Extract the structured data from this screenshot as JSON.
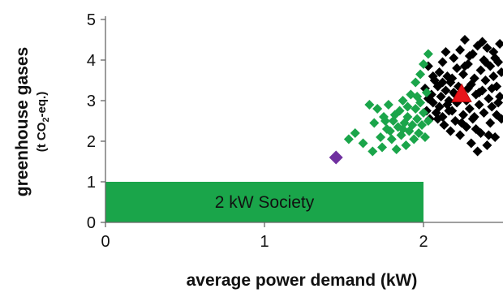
{
  "chart_data": {
    "type": "scatter",
    "xlabel": "average power demand (kW)",
    "ylabel": "greenhouse gases",
    "ylabel_unit": {
      "prefix": "(t CO",
      "subscript": "2",
      "suffix": "-eq.)"
    },
    "xlim": [
      0,
      2.5
    ],
    "ylim": [
      0,
      5
    ],
    "x_ticks": [
      0,
      1,
      2
    ],
    "y_ticks": [
      0,
      1,
      2,
      3,
      4,
      5
    ],
    "grid": false,
    "legend": "none",
    "annotations": [
      {
        "text": "2 kW Society",
        "x_range": [
          0,
          2
        ],
        "y_range": [
          0,
          1
        ],
        "color": "#1aa54a"
      }
    ],
    "series": [
      {
        "marker": "diamond",
        "color": "#000000",
        "points": [
          [
            2.01,
            3.3
          ],
          [
            2.02,
            2.75
          ],
          [
            2.03,
            3.05
          ],
          [
            2.03,
            3.85
          ],
          [
            2.04,
            2.55
          ],
          [
            2.05,
            3.15
          ],
          [
            2.06,
            2.95
          ],
          [
            2.07,
            3.5
          ],
          [
            2.08,
            2.7
          ],
          [
            2.09,
            3.35
          ],
          [
            2.1,
            2.85
          ],
          [
            2.1,
            3.7
          ],
          [
            2.11,
            3.1
          ],
          [
            2.12,
            2.6
          ],
          [
            2.12,
            3.95
          ],
          [
            2.13,
            2.4
          ],
          [
            2.14,
            3.25
          ],
          [
            2.15,
            2.9
          ],
          [
            2.15,
            3.6
          ],
          [
            2.16,
            3.0
          ],
          [
            2.17,
            2.25
          ],
          [
            2.17,
            3.45
          ],
          [
            2.18,
            2.75
          ],
          [
            2.19,
            4.05
          ],
          [
            2.19,
            3.2
          ],
          [
            2.2,
            2.5
          ],
          [
            2.21,
            3.8
          ],
          [
            2.21,
            2.95
          ],
          [
            2.22,
            3.35
          ],
          [
            2.23,
            4.25
          ],
          [
            2.23,
            2.15
          ],
          [
            2.24,
            3.1
          ],
          [
            2.25,
            3.65
          ],
          [
            2.25,
            2.65
          ],
          [
            2.26,
            4.5
          ],
          [
            2.27,
            3.0
          ],
          [
            2.27,
            2.35
          ],
          [
            2.28,
            3.9
          ],
          [
            2.29,
            2.8
          ],
          [
            2.3,
            3.4
          ],
          [
            2.3,
            1.95
          ],
          [
            2.31,
            4.15
          ],
          [
            2.32,
            2.6
          ],
          [
            2.32,
            3.55
          ],
          [
            2.33,
            3.15
          ],
          [
            2.34,
            1.75
          ],
          [
            2.34,
            4.35
          ],
          [
            2.35,
            2.9
          ],
          [
            2.36,
            3.75
          ],
          [
            2.36,
            2.2
          ],
          [
            2.37,
            3.25
          ],
          [
            2.38,
            4.0
          ],
          [
            2.38,
            2.7
          ],
          [
            2.39,
            3.5
          ],
          [
            2.4,
            1.9
          ],
          [
            2.4,
            4.3
          ],
          [
            2.41,
            3.05
          ],
          [
            2.42,
            2.45
          ],
          [
            2.42,
            3.85
          ],
          [
            2.43,
            2.85
          ],
          [
            2.44,
            3.6
          ],
          [
            2.44,
            4.2
          ],
          [
            2.45,
            2.1
          ],
          [
            2.46,
            3.35
          ],
          [
            2.46,
            2.65
          ],
          [
            2.47,
            3.95
          ],
          [
            2.48,
            3.1
          ],
          [
            2.48,
            4.4
          ],
          [
            2.49,
            2.55
          ],
          [
            2.49,
            3.7
          ],
          [
            2.06,
            3.6
          ],
          [
            2.09,
            2.55
          ],
          [
            2.14,
            4.2
          ],
          [
            2.18,
            3.55
          ],
          [
            2.24,
            2.45
          ],
          [
            2.28,
            3.3
          ],
          [
            2.33,
            2.3
          ],
          [
            2.37,
            4.45
          ],
          [
            2.41,
            2.15
          ],
          [
            2.45,
            4.05
          ],
          [
            2.47,
            2.95
          ],
          [
            2.26,
            3.85
          ],
          [
            2.2,
            3.15
          ],
          [
            2.31,
            2.55
          ],
          [
            2.39,
            3.95
          ],
          [
            2.43,
            3.3
          ],
          [
            2.12,
            3.45
          ],
          [
            2.35,
            3.2
          ],
          [
            2.29,
            4.1
          ],
          [
            2.16,
            2.75
          ]
        ]
      },
      {
        "marker": "diamond",
        "color": "#1aa54a",
        "points": [
          [
            1.53,
            2.05
          ],
          [
            1.57,
            2.2
          ],
          [
            1.62,
            1.95
          ],
          [
            1.66,
            2.9
          ],
          [
            1.68,
            1.75
          ],
          [
            1.69,
            2.45
          ],
          [
            1.71,
            2.8
          ],
          [
            1.73,
            2.1
          ],
          [
            1.74,
            1.85
          ],
          [
            1.75,
            2.6
          ],
          [
            1.77,
            2.3
          ],
          [
            1.78,
            2.9
          ],
          [
            1.8,
            2.05
          ],
          [
            1.81,
            2.5
          ],
          [
            1.83,
            1.8
          ],
          [
            1.84,
            2.35
          ],
          [
            1.85,
            2.75
          ],
          [
            1.86,
            2.15
          ],
          [
            1.87,
            3.0
          ],
          [
            1.88,
            2.45
          ],
          [
            1.89,
            1.9
          ],
          [
            1.9,
            2.6
          ],
          [
            1.91,
            2.25
          ],
          [
            1.92,
            3.15
          ],
          [
            1.93,
            2.4
          ],
          [
            1.94,
            2.05
          ],
          [
            1.95,
            2.8
          ],
          [
            1.95,
            3.45
          ],
          [
            1.96,
            2.55
          ],
          [
            1.97,
            2.2
          ],
          [
            1.98,
            3.65
          ],
          [
            1.98,
            2.95
          ],
          [
            1.99,
            2.4
          ],
          [
            2.0,
            3.9
          ],
          [
            2.0,
            2.7
          ],
          [
            2.01,
            2.1
          ],
          [
            2.02,
            3.2
          ],
          [
            2.03,
            4.15
          ],
          [
            2.03,
            2.5
          ],
          [
            1.96,
            3.1
          ],
          [
            1.9,
            2.85
          ],
          [
            1.82,
            2.65
          ],
          [
            1.76,
            2.5
          ],
          [
            1.79,
            2.25
          ],
          [
            1.87,
            2.3
          ]
        ]
      },
      {
        "marker": "diamond",
        "color": "#7030a0",
        "points": [
          [
            1.45,
            1.6
          ]
        ]
      },
      {
        "marker": "triangle",
        "color": "#e8141b",
        "points": [
          [
            2.24,
            3.15
          ]
        ]
      }
    ]
  }
}
